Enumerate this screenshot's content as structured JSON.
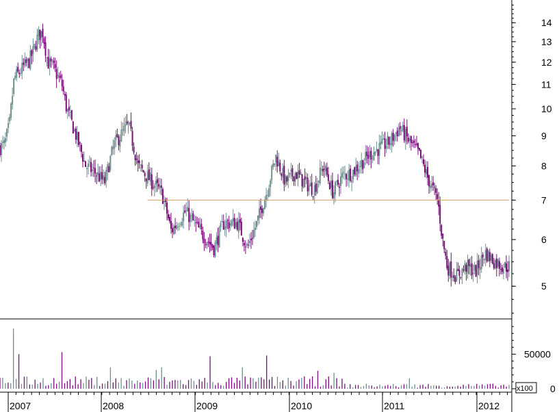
{
  "chart_data": {
    "type": "candlestick",
    "price_axis": {
      "scale": "log",
      "ylim": [
        4.4,
        15.3
      ],
      "ticks": [
        5,
        6,
        7,
        8,
        9,
        10,
        11,
        12,
        13,
        14
      ]
    },
    "volume_axis": {
      "ylim": [
        0,
        100000
      ],
      "ticks": [
        0,
        50000
      ],
      "tick_labels": [
        "0",
        "50000"
      ],
      "unit_label": "x100"
    },
    "x_axis": {
      "years": [
        "2007",
        "2008",
        "2009",
        "2010",
        "2011",
        "2012"
      ]
    },
    "support_line": {
      "value": 7.0,
      "start": "2008.45",
      "end": "2012.25",
      "color": "#d9a060"
    },
    "colors": {
      "up": "#6f8f8f",
      "down": "#7a0d7a",
      "line": "#d9a060",
      "axis": "#000000"
    },
    "price_path": [
      [
        "2006.90",
        8.6
      ],
      [
        "2006.95",
        8.7
      ],
      [
        "2007.00",
        9.4
      ],
      [
        "2007.05",
        11.3
      ],
      [
        "2007.10",
        11.5
      ],
      [
        "2007.15",
        11.8
      ],
      [
        "2007.20",
        12.0
      ],
      [
        "2007.25",
        12.5
      ],
      [
        "2007.30",
        13.3
      ],
      [
        "2007.35",
        13.5
      ],
      [
        "2007.40",
        12.0
      ],
      [
        "2007.45",
        11.8
      ],
      [
        "2007.50",
        11.4
      ],
      [
        "2007.55",
        11.0
      ],
      [
        "2007.60",
        10.0
      ],
      [
        "2007.70",
        9.0
      ],
      [
        "2007.80",
        8.0
      ],
      [
        "2007.90",
        7.8
      ],
      [
        "2008.00",
        7.5
      ],
      [
        "2008.10",
        8.7
      ],
      [
        "2008.25",
        9.4
      ],
      [
        "2008.35",
        8.0
      ],
      [
        "2008.50",
        7.5
      ],
      [
        "2008.60",
        7.2
      ],
      [
        "2008.70",
        6.2
      ],
      [
        "2008.85",
        6.7
      ],
      [
        "2009.00",
        6.2
      ],
      [
        "2009.15",
        5.8
      ],
      [
        "2009.25",
        6.4
      ],
      [
        "2009.40",
        6.4
      ],
      [
        "2009.50",
        5.8
      ],
      [
        "2009.60",
        6.4
      ],
      [
        "2009.70",
        7.2
      ],
      [
        "2009.80",
        8.3
      ],
      [
        "2009.90",
        7.5
      ],
      [
        "2010.00",
        7.8
      ],
      [
        "2010.10",
        7.5
      ],
      [
        "2010.20",
        7.3
      ],
      [
        "2010.30",
        8.0
      ],
      [
        "2010.40",
        7.2
      ],
      [
        "2010.50",
        7.7
      ],
      [
        "2010.60",
        7.8
      ],
      [
        "2010.70",
        8.1
      ],
      [
        "2010.80",
        8.4
      ],
      [
        "2010.90",
        8.6
      ],
      [
        "2011.00",
        8.8
      ],
      [
        "2011.10",
        9.3
      ],
      [
        "2011.20",
        8.8
      ],
      [
        "2011.30",
        8.4
      ],
      [
        "2011.40",
        7.6
      ],
      [
        "2011.50",
        7.0
      ],
      [
        "2011.55",
        6.0
      ],
      [
        "2011.60",
        5.4
      ],
      [
        "2011.70",
        5.2
      ],
      [
        "2011.80",
        5.4
      ],
      [
        "2011.90",
        5.3
      ],
      [
        "2012.00",
        5.7
      ],
      [
        "2012.10",
        5.5
      ],
      [
        "2012.20",
        5.4
      ],
      [
        "2012.25",
        5.4
      ]
    ],
    "volume_spikes": [
      [
        "2007.05",
        87000
      ],
      [
        "2007.10",
        50000
      ],
      [
        "2007.55",
        53000
      ],
      [
        "2008.05",
        31000
      ],
      [
        "2009.10",
        47000
      ],
      [
        "2009.70",
        48000
      ],
      [
        "2010.25",
        26000
      ],
      [
        "2010.40",
        23000
      ],
      [
        "2008.55",
        27000
      ],
      [
        "2008.60",
        31000
      ],
      [
        "2009.45",
        31000
      ],
      [
        "2011.20",
        15000
      ]
    ]
  }
}
